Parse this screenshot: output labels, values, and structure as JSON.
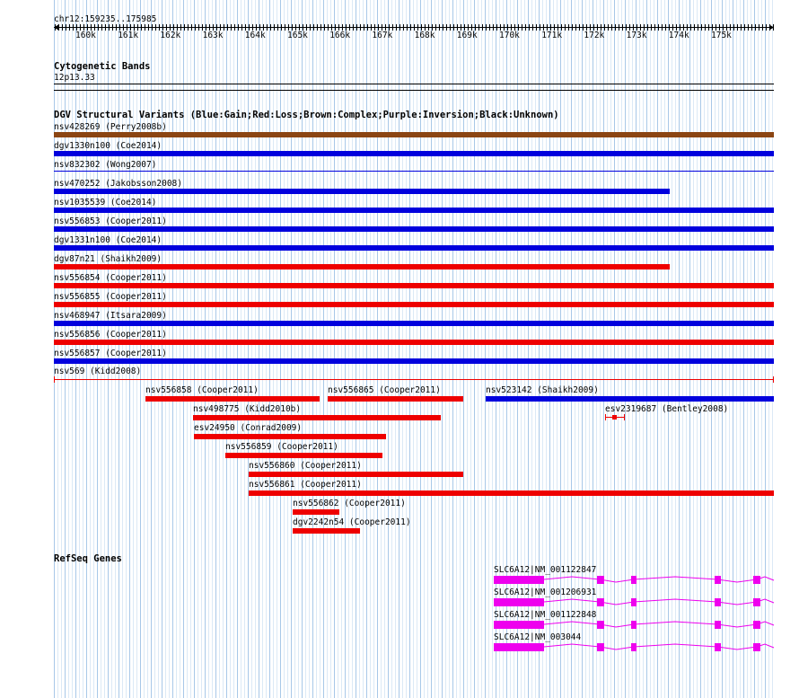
{
  "ruler": {
    "position_label": "chr12:159235..175985",
    "ticks": [
      "160k",
      "161k",
      "162k",
      "163k",
      "164k",
      "165k",
      "166k",
      "167k",
      "168k",
      "169k",
      "170k",
      "171k",
      "172k",
      "173k",
      "174k",
      "175k"
    ]
  },
  "cytoband": {
    "title": "Cytogenetic Bands",
    "band": "12p13.33"
  },
  "dgv": {
    "title": "DGV Structural Variants (Blue:Gain;Red:Loss;Brown:Complex;Purple:Inversion;Black:Unknown)",
    "colors": {
      "gain": "#0000dd",
      "loss": "#ee0000",
      "complex": "#8b4513"
    },
    "variants": [
      {
        "label": "nsv428269 (Perry2008b)",
        "type": "complex"
      },
      {
        "label": "dgv1330n100 (Coe2014)",
        "type": "gain"
      },
      {
        "label": "nsv832302 (Wong2007)",
        "type": "gain"
      },
      {
        "label": "nsv470252 (Jakobsson2008)",
        "type": "gain"
      },
      {
        "label": "nsv1035539 (Coe2014)",
        "type": "gain"
      },
      {
        "label": "nsv556853 (Cooper2011)",
        "type": "gain"
      },
      {
        "label": "dgv1331n100 (Coe2014)",
        "type": "gain"
      },
      {
        "label": "dgv87n21 (Shaikh2009)",
        "type": "loss"
      },
      {
        "label": "nsv556854 (Cooper2011)",
        "type": "loss"
      },
      {
        "label": "nsv556855 (Cooper2011)",
        "type": "loss"
      },
      {
        "label": "nsv468947 (Itsara2009)",
        "type": "gain"
      },
      {
        "label": "nsv556856 (Cooper2011)",
        "type": "loss"
      },
      {
        "label": "nsv556857 (Cooper2011)",
        "type": "gain"
      },
      {
        "label": "nsv569 (Kidd2008)",
        "type": "loss"
      },
      {
        "label": "nsv556858 (Cooper2011)",
        "type": "loss"
      },
      {
        "label": "nsv556865 (Cooper2011)",
        "type": "loss"
      },
      {
        "label": "nsv523142 (Shaikh2009)",
        "type": "gain"
      },
      {
        "label": "nsv498775 (Kidd2010b)",
        "type": "loss"
      },
      {
        "label": "esv2319687 (Bentley2008)",
        "type": "loss"
      },
      {
        "label": "esv24950 (Conrad2009)",
        "type": "loss"
      },
      {
        "label": "nsv556859 (Cooper2011)",
        "type": "loss"
      },
      {
        "label": "nsv556860 (Cooper2011)",
        "type": "loss"
      },
      {
        "label": "nsv556861 (Cooper2011)",
        "type": "loss"
      },
      {
        "label": "nsv556862 (Cooper2011)",
        "type": "loss"
      },
      {
        "label": "dgv2242n54 (Cooper2011)",
        "type": "loss"
      }
    ]
  },
  "refseq": {
    "title": "RefSeq Genes",
    "color": "#ee00ee",
    "genes": [
      {
        "label": "SLC6A12|NM_001122847"
      },
      {
        "label": "SLC6A12|NM_001206931"
      },
      {
        "label": "SLC6A12|NM_001122848"
      },
      {
        "label": "SLC6A12|NM_003044"
      }
    ]
  }
}
